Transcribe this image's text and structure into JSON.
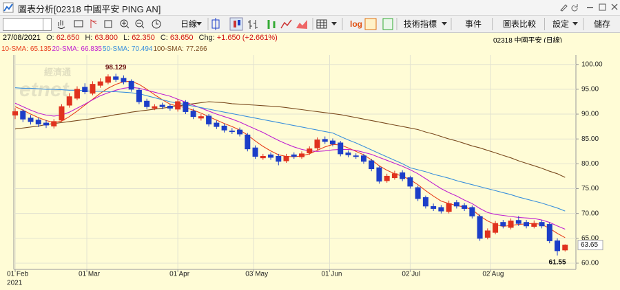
{
  "window": {
    "title": "圖表分析[02318 中國平安 PING AN]"
  },
  "toolbar": {
    "period": "日線",
    "log": "log",
    "indicators": "技術指標",
    "events": "事件",
    "compare": "圖表比較",
    "settings": "設定",
    "save": "儲存"
  },
  "quote": {
    "date": "27/08/2021",
    "items": [
      {
        "label": "O:",
        "value": "62.650"
      },
      {
        "label": "H:",
        "value": "63.800"
      },
      {
        "label": "L:",
        "value": "62.350"
      },
      {
        "label": "C:",
        "value": "63.650"
      },
      {
        "label": "Chg:",
        "value": "+1.650 (+2.661%)"
      }
    ],
    "symbol": "02318 中國平安 (日線)"
  },
  "chart_data": {
    "type": "candlestick",
    "watermark": [
      "經濟通",
      "etnet"
    ],
    "categories": [
      null,
      null,
      null,
      null,
      null,
      null,
      null,
      null,
      null,
      null,
      null,
      null,
      null,
      null,
      null,
      null,
      null,
      null,
      null,
      null,
      null,
      null,
      null,
      null,
      null,
      null,
      null,
      null,
      null,
      null,
      null,
      null,
      null,
      null,
      null,
      null,
      null,
      null,
      null,
      null,
      null,
      null,
      null,
      null,
      null,
      null,
      null,
      null,
      null,
      null,
      null,
      null,
      null,
      null,
      null,
      null,
      null,
      null,
      null,
      null,
      null,
      null,
      null,
      null,
      null,
      null,
      null,
      null,
      null,
      null,
      null,
      null
    ],
    "open": [
      89.8,
      90.6,
      89.2,
      88.8,
      88.2,
      87.6,
      88.8,
      91.8,
      93.2,
      95.4,
      94.2,
      95.8,
      96.4,
      97.5,
      97.2,
      96.6,
      94.8,
      92.6,
      91.2,
      91.8,
      91.6,
      91.0,
      92.4,
      90.6,
      89.2,
      89.6,
      88.2,
      87.6,
      86.6,
      86.8,
      85.8,
      83.2,
      81.2,
      81.8,
      81.5,
      80.6,
      81.8,
      81.4,
      82.2,
      83.2,
      84.9,
      84.6,
      84.2,
      82.2,
      81.6,
      81.6,
      80.6,
      79.2,
      76.6,
      77.2,
      78.2,
      77.2,
      75.2,
      73.2,
      71.4,
      71.2,
      70.4,
      72.2,
      71.6,
      71.2,
      69.4,
      65.2,
      66.2,
      68.2,
      67.2,
      68.6,
      68.2,
      67.4,
      68.2,
      67.8,
      64.5,
      62.65
    ],
    "high": [
      91.2,
      91.0,
      89.8,
      89.3,
      88.8,
      89.0,
      92.0,
      94.2,
      95.6,
      96.2,
      96.6,
      97.2,
      98.0,
      98.129,
      97.8,
      97.0,
      95.3,
      93.1,
      92.0,
      92.3,
      92.1,
      93.0,
      92.8,
      91.1,
      90.0,
      90.0,
      88.7,
      88.1,
      87.2,
      87.3,
      86.2,
      83.7,
      82.0,
      82.3,
      82.0,
      82.0,
      82.3,
      82.5,
      83.5,
      85.3,
      85.5,
      85.1,
      84.6,
      82.7,
      82.1,
      82.0,
      81.0,
      79.6,
      78.0,
      78.6,
      78.7,
      77.6,
      75.6,
      73.6,
      72.0,
      71.7,
      72.6,
      72.7,
      72.1,
      71.6,
      69.8,
      67.0,
      68.5,
      68.7,
      69.0,
      69.5,
      68.7,
      68.6,
      68.7,
      68.2,
      65.0,
      63.8
    ],
    "low": [
      89.0,
      88.4,
      87.9,
      87.4,
      87.2,
      87.1,
      88.5,
      91.3,
      92.8,
      94.0,
      93.8,
      95.3,
      96.0,
      96.5,
      96.0,
      94.5,
      92.0,
      91.0,
      90.8,
      91.0,
      90.7,
      90.5,
      90.0,
      89.0,
      88.7,
      87.5,
      87.0,
      86.3,
      86.0,
      85.5,
      82.5,
      81.0,
      80.8,
      80.8,
      79.7,
      80.2,
      81.0,
      81.0,
      81.8,
      82.8,
      84.0,
      83.5,
      81.5,
      81.3,
      81.0,
      80.0,
      78.5,
      76.0,
      76.2,
      76.8,
      76.5,
      75.0,
      72.5,
      71.0,
      70.5,
      70.0,
      70.0,
      71.0,
      70.5,
      69.0,
      64.5,
      64.8,
      65.8,
      67.0,
      66.8,
      67.5,
      67.0,
      67.0,
      67.0,
      64.0,
      61.55,
      62.35
    ],
    "close": [
      90.5,
      89,
      88.5,
      88,
      87.8,
      88.5,
      91.5,
      93.5,
      95,
      94.5,
      96,
      96.5,
      97.5,
      97,
      96.5,
      95,
      92.5,
      91.5,
      91.5,
      91.5,
      91.2,
      92.5,
      90.5,
      89.5,
      89.5,
      88,
      87.5,
      86.8,
      86.5,
      86,
      83,
      81.5,
      81.5,
      81.3,
      80.5,
      81.5,
      81.5,
      82,
      83,
      84.8,
      84.5,
      84,
      82,
      81.8,
      81.5,
      80.5,
      79,
      76.5,
      77.5,
      78,
      77,
      75.5,
      73,
      71.5,
      71,
      70.5,
      72,
      71.5,
      71,
      69.5,
      65,
      66.5,
      68,
      67.5,
      68.5,
      68,
      67.5,
      68,
      67.5,
      64.5,
      62.5,
      63.65
    ],
    "up_color": "#e0321e",
    "down_color": "#1c3ec8",
    "series": [
      {
        "name": "10-SMA:",
        "color": "#e8401c",
        "values": [
          91.5,
          90.8,
          90.0,
          89.3,
          88.7,
          88.3,
          88.6,
          89.5,
          90.6,
          91.8,
          93.0,
          94.2,
          95.2,
          96.0,
          96.5,
          96.6,
          96.0,
          95.0,
          93.9,
          92.9,
          92.0,
          91.6,
          91.3,
          90.8,
          90.2,
          89.5,
          88.8,
          88.1,
          87.5,
          86.8,
          85.8,
          84.6,
          83.5,
          82.6,
          81.8,
          81.5,
          81.4,
          81.6,
          82.0,
          82.7,
          83.4,
          83.9,
          83.8,
          83.2,
          82.5,
          81.8,
          80.8,
          79.6,
          78.7,
          78.0,
          77.5,
          76.8,
          75.8,
          74.6,
          73.5,
          72.5,
          72.0,
          71.6,
          71.3,
          70.8,
          69.5,
          68.5,
          67.8,
          67.4,
          67.6,
          67.8,
          67.9,
          68.0,
          67.8,
          67.0,
          66.0,
          65.135
        ]
      },
      {
        "name": "20-SMA:",
        "color": "#c020d0",
        "values": [
          92.2,
          91.5,
          90.8,
          90.2,
          89.8,
          89.6,
          89.8,
          90.4,
          91.2,
          92.0,
          92.9,
          93.7,
          94.3,
          94.8,
          95.2,
          95.4,
          95.2,
          94.8,
          94.4,
          94.0,
          93.6,
          93.0,
          92.4,
          91.8,
          91.2,
          90.6,
          90.0,
          89.5,
          89.0,
          88.4,
          87.7,
          87.0,
          86.3,
          85.5,
          84.7,
          84.0,
          83.4,
          82.9,
          82.6,
          82.5,
          82.6,
          82.8,
          82.9,
          82.9,
          82.7,
          82.3,
          81.9,
          81.3,
          80.7,
          80.1,
          79.5,
          78.8,
          78.0,
          77.0,
          76.0,
          75.0,
          74.2,
          73.5,
          72.7,
          72.0,
          71.0,
          70.2,
          69.8,
          69.6,
          69.4,
          69.2,
          69.1,
          69.0,
          68.7,
          68.2,
          67.5,
          66.835
        ]
      },
      {
        "name": "50-SMA:",
        "color": "#3a8fdc",
        "values": [
          95.3,
          95.2,
          95.2,
          95.1,
          95.0,
          95.0,
          94.9,
          94.8,
          94.8,
          94.7,
          94.6,
          94.6,
          94.5,
          94.5,
          94.4,
          94.3,
          94.1,
          93.7,
          93.3,
          92.9,
          92.5,
          92.2,
          91.9,
          91.6,
          91.3,
          91.0,
          90.7,
          90.4,
          90.1,
          89.8,
          89.5,
          89.2,
          88.9,
          88.6,
          88.3,
          88.0,
          87.7,
          87.4,
          87.1,
          86.8,
          86.5,
          86.2,
          85.5,
          84.8,
          84.2,
          83.5,
          82.8,
          82.1,
          81.4,
          80.7,
          80.0,
          79.2,
          78.8,
          78.4,
          77.9,
          77.5,
          77.1,
          76.6,
          76.2,
          75.8,
          75.4,
          75.0,
          74.6,
          74.2,
          73.8,
          73.3,
          72.9,
          72.5,
          72.1,
          71.6,
          71.1,
          70.494
        ]
      },
      {
        "name": "100-SMA:",
        "color": "#7a4a1e",
        "values": [
          87.0,
          87.2,
          87.4,
          87.6,
          87.9,
          88.1,
          88.3,
          88.5,
          88.7,
          88.9,
          89.1,
          89.4,
          89.6,
          89.9,
          90.1,
          90.4,
          90.6,
          90.8,
          91.0,
          91.2,
          91.4,
          91.6,
          91.9,
          92.1,
          92.3,
          92.5,
          92.4,
          92.3,
          92.1,
          92.0,
          91.9,
          91.8,
          91.7,
          91.6,
          91.5,
          91.3,
          91.1,
          90.9,
          90.7,
          90.5,
          90.3,
          90.1,
          89.9,
          89.6,
          89.3,
          89.0,
          88.7,
          88.4,
          88.1,
          87.8,
          87.5,
          87.2,
          86.9,
          86.4,
          86.0,
          85.5,
          85.0,
          84.6,
          84.1,
          83.6,
          83.2,
          82.7,
          82.2,
          81.7,
          81.2,
          80.6,
          80.1,
          79.6,
          79.1,
          78.5,
          78.0,
          77.266
        ]
      }
    ],
    "xlim": [
      -0.18,
      72.4
    ],
    "xticks": [
      {
        "value": 0,
        "label": "01 Feb"
      },
      {
        "value": 9.25,
        "label": "01 Mar"
      },
      {
        "value": 21,
        "label": "01 Apr"
      },
      {
        "value": 30.8,
        "label": "03 May"
      },
      {
        "value": 40.6,
        "label": "01 Jun"
      },
      {
        "value": 51,
        "label": "02 Jul"
      },
      {
        "value": 61.4,
        "label": "02 Aug"
      }
    ],
    "x_year_label": "2021",
    "ylim": [
      58.75,
      101.9
    ],
    "yticks": [
      {
        "value": 60,
        "label": "60.00"
      },
      {
        "value": 65,
        "label": "65.00"
      },
      {
        "value": 70,
        "label": "70.00"
      },
      {
        "value": 75,
        "label": "75.00"
      },
      {
        "value": 80,
        "label": "80.00"
      },
      {
        "value": 85,
        "label": "85.00"
      },
      {
        "value": 90,
        "label": "90.00"
      },
      {
        "value": 95,
        "label": "95.00"
      },
      {
        "value": 100,
        "label": "100.00"
      }
    ],
    "grid": true,
    "annotations": [
      {
        "value": 98.129,
        "label": "98.129"
      },
      {
        "value": 61.55,
        "label": "61.55"
      }
    ],
    "last_price": {
      "value": 63.65,
      "label": "63.65"
    }
  }
}
